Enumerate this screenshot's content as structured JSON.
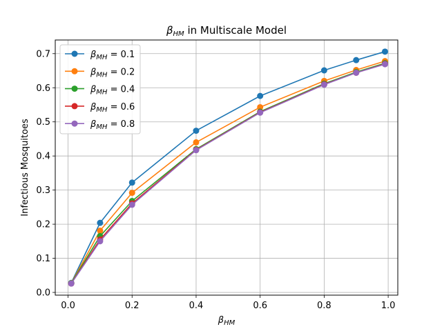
{
  "chart_data": {
    "type": "line",
    "title": {
      "symbol": "β",
      "sub": "HM",
      "rest": " in Multiscale Model"
    },
    "xlabel": {
      "symbol": "β",
      "sub": "HM"
    },
    "ylabel": "Infectious Mosquitoes",
    "xlim": [
      -0.04,
      1.03
    ],
    "ylim": [
      -0.008,
      0.74
    ],
    "xticks": [
      0.0,
      0.2,
      0.4,
      0.6,
      0.8,
      1.0
    ],
    "xtick_labels": [
      "0.0",
      "0.2",
      "0.4",
      "0.6",
      "0.8",
      "1.0"
    ],
    "yticks": [
      0.0,
      0.1,
      0.2,
      0.3,
      0.4,
      0.5,
      0.6,
      0.7
    ],
    "ytick_labels": [
      "0.0",
      "0.1",
      "0.2",
      "0.3",
      "0.4",
      "0.5",
      "0.6",
      "0.7"
    ],
    "grid": true,
    "legend_position": "top-left",
    "x": [
      0.01,
      0.1,
      0.2,
      0.4,
      0.6,
      0.8,
      0.9,
      0.99
    ],
    "series": [
      {
        "label_symbol": "β",
        "label_sub": "MH",
        "label_rest": " = 0.1",
        "color": "#1f77b4",
        "values": [
          0.028,
          0.204,
          0.322,
          0.474,
          0.576,
          0.651,
          0.681,
          0.706
        ]
      },
      {
        "label_symbol": "β",
        "label_sub": "MH",
        "label_rest": " = 0.2",
        "color": "#ff7f0e",
        "values": [
          0.027,
          0.181,
          0.292,
          0.44,
          0.543,
          0.62,
          0.652,
          0.678
        ]
      },
      {
        "label_symbol": "β",
        "label_sub": "MH",
        "label_rest": " = 0.4",
        "color": "#2ca02c",
        "values": [
          0.027,
          0.165,
          0.268,
          0.42,
          0.53,
          0.612,
          0.646,
          0.672
        ]
      },
      {
        "label_symbol": "β",
        "label_sub": "MH",
        "label_rest": " = 0.6",
        "color": "#d62728",
        "values": [
          0.026,
          0.155,
          0.261,
          0.418,
          0.528,
          0.61,
          0.644,
          0.67
        ]
      },
      {
        "label_symbol": "β",
        "label_sub": "MH",
        "label_rest": " = 0.8",
        "color": "#9467bd",
        "values": [
          0.026,
          0.15,
          0.257,
          0.417,
          0.527,
          0.609,
          0.644,
          0.669
        ]
      }
    ]
  }
}
